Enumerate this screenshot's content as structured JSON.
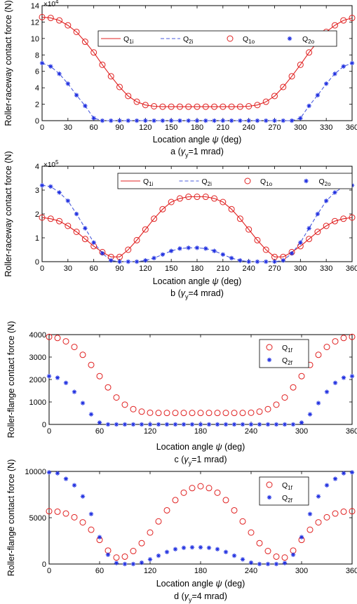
{
  "chart_data": [
    {
      "type": "line",
      "panel": "a",
      "caption_parts": [
        "a (",
        "γ",
        "y",
        "=1 mrad)"
      ],
      "xlabel_parts": [
        "Location angle ",
        "ψ",
        " (deg)"
      ],
      "ylabel": "Roller-raceway contact force (N)",
      "exponent_parts": [
        "×10",
        "4"
      ],
      "xlim": [
        0,
        360
      ],
      "xticks": [
        0,
        30,
        60,
        90,
        120,
        150,
        180,
        210,
        240,
        270,
        300,
        330,
        360
      ],
      "ylim": [
        0,
        14
      ],
      "yticks": [
        0,
        2,
        4,
        6,
        8,
        10,
        12,
        14
      ],
      "legend": [
        {
          "base": "Q",
          "sub": "1i",
          "style": "line-red"
        },
        {
          "base": "Q",
          "sub": "2i",
          "style": "dash-blue"
        },
        {
          "base": "Q",
          "sub": "1o",
          "style": "circle-red"
        },
        {
          "base": "Q",
          "sub": "2o",
          "style": "star-blue"
        }
      ],
      "legend_position": "top",
      "x": [
        0,
        10,
        20,
        30,
        40,
        50,
        60,
        70,
        80,
        90,
        100,
        110,
        120,
        130,
        140,
        150,
        160,
        170,
        180,
        190,
        200,
        210,
        220,
        230,
        240,
        250,
        260,
        270,
        280,
        290,
        300,
        310,
        320,
        330,
        340,
        350,
        360
      ],
      "series": [
        {
          "name": "Q1i",
          "style": "line-red",
          "values": [
            12.6,
            12.5,
            12.2,
            11.6,
            10.8,
            9.6,
            8.3,
            6.8,
            5.4,
            4.1,
            3.0,
            2.3,
            1.9,
            1.75,
            1.7,
            1.7,
            1.7,
            1.7,
            1.7,
            1.7,
            1.7,
            1.7,
            1.7,
            1.7,
            1.75,
            1.9,
            2.3,
            3.0,
            4.1,
            5.4,
            6.8,
            8.3,
            9.6,
            10.8,
            11.6,
            12.2,
            12.5
          ]
        },
        {
          "name": "Q2i",
          "style": "dash-blue",
          "values": [
            7.0,
            6.6,
            5.7,
            4.5,
            3.1,
            1.8,
            0.3,
            0,
            0,
            0,
            0,
            0,
            0,
            0,
            0,
            0,
            0,
            0,
            0,
            0,
            0,
            0,
            0,
            0,
            0,
            0,
            0,
            0,
            0,
            0,
            0.3,
            1.8,
            3.1,
            4.5,
            5.7,
            6.6,
            7.0
          ]
        },
        {
          "name": "Q1o",
          "style": "circle-red",
          "values": [
            12.6,
            12.5,
            12.2,
            11.6,
            10.8,
            9.6,
            8.3,
            6.8,
            5.4,
            4.1,
            3.0,
            2.3,
            1.9,
            1.75,
            1.7,
            1.7,
            1.7,
            1.7,
            1.7,
            1.7,
            1.7,
            1.7,
            1.7,
            1.7,
            1.75,
            1.9,
            2.3,
            3.0,
            4.1,
            5.4,
            6.8,
            8.3,
            9.6,
            10.8,
            11.6,
            12.2,
            12.5
          ]
        },
        {
          "name": "Q2o",
          "style": "star-blue",
          "values": [
            7.0,
            6.6,
            5.7,
            4.5,
            3.1,
            1.8,
            0.3,
            0,
            0,
            0,
            0,
            0,
            0,
            0,
            0,
            0,
            0,
            0,
            0,
            0,
            0,
            0,
            0,
            0,
            0,
            0,
            0,
            0,
            0,
            0,
            0.3,
            1.8,
            3.1,
            4.5,
            5.7,
            6.6,
            7.0
          ]
        }
      ]
    },
    {
      "type": "line",
      "panel": "b",
      "caption_parts": [
        "b (",
        "γ",
        "y",
        "=4 mrad)"
      ],
      "xlabel_parts": [
        "Location angle ",
        "ψ",
        " (deg)"
      ],
      "ylabel": "Roller-raceway contact force (N)",
      "exponent_parts": [
        "×10",
        "5"
      ],
      "xlim": [
        0,
        360
      ],
      "xticks": [
        0,
        30,
        60,
        90,
        120,
        150,
        180,
        210,
        240,
        270,
        300,
        330,
        360
      ],
      "ylim": [
        0,
        4
      ],
      "yticks": [
        0,
        1,
        2,
        3,
        4
      ],
      "legend": [
        {
          "base": "Q",
          "sub": "1i",
          "style": "line-red"
        },
        {
          "base": "Q",
          "sub": "2i",
          "style": "dash-blue"
        },
        {
          "base": "Q",
          "sub": "1o",
          "style": "circle-red"
        },
        {
          "base": "Q",
          "sub": "2o",
          "style": "star-blue"
        }
      ],
      "legend_position": "top",
      "x": [
        0,
        10,
        20,
        30,
        40,
        50,
        60,
        70,
        80,
        90,
        100,
        110,
        120,
        130,
        140,
        150,
        160,
        170,
        180,
        190,
        200,
        210,
        220,
        230,
        240,
        250,
        260,
        270,
        280,
        290,
        300,
        310,
        320,
        330,
        340,
        350,
        360
      ],
      "series": [
        {
          "name": "Q1i",
          "style": "line-red",
          "values": [
            1.85,
            1.8,
            1.7,
            1.5,
            1.25,
            0.95,
            0.65,
            0.4,
            0.2,
            0.2,
            0.5,
            0.9,
            1.35,
            1.8,
            2.2,
            2.5,
            2.65,
            2.72,
            2.72,
            2.72,
            2.65,
            2.5,
            2.2,
            1.8,
            1.35,
            0.9,
            0.5,
            0.2,
            0.2,
            0.4,
            0.65,
            0.95,
            1.25,
            1.5,
            1.7,
            1.8,
            1.85
          ]
        },
        {
          "name": "Q2i",
          "style": "dash-blue",
          "values": [
            3.2,
            3.15,
            2.9,
            2.55,
            2.0,
            1.4,
            0.8,
            0.35,
            0.05,
            0,
            0,
            0,
            0.05,
            0.15,
            0.3,
            0.45,
            0.55,
            0.58,
            0.58,
            0.55,
            0.45,
            0.3,
            0.15,
            0.05,
            0,
            0,
            0,
            0,
            0.05,
            0.35,
            0.8,
            1.4,
            2.0,
            2.55,
            2.9,
            3.15,
            3.2
          ]
        },
        {
          "name": "Q1o",
          "style": "circle-red",
          "values": [
            1.85,
            1.8,
            1.7,
            1.5,
            1.25,
            0.95,
            0.65,
            0.4,
            0.2,
            0.2,
            0.5,
            0.9,
            1.35,
            1.8,
            2.2,
            2.5,
            2.65,
            2.72,
            2.72,
            2.72,
            2.65,
            2.5,
            2.2,
            1.8,
            1.35,
            0.9,
            0.5,
            0.2,
            0.2,
            0.4,
            0.65,
            0.95,
            1.25,
            1.5,
            1.7,
            1.8,
            1.85
          ]
        },
        {
          "name": "Q2o",
          "style": "star-blue",
          "values": [
            3.2,
            3.15,
            2.9,
            2.55,
            2.0,
            1.4,
            0.8,
            0.35,
            0.05,
            0,
            0,
            0,
            0.05,
            0.15,
            0.3,
            0.45,
            0.55,
            0.58,
            0.58,
            0.55,
            0.45,
            0.3,
            0.15,
            0.05,
            0,
            0,
            0,
            0,
            0.05,
            0.35,
            0.8,
            1.4,
            2.0,
            2.55,
            2.9,
            3.15,
            3.2
          ]
        }
      ]
    },
    {
      "type": "scatter",
      "panel": "c",
      "caption_parts": [
        "c (",
        "γ",
        "y",
        "=1 mrad)"
      ],
      "xlabel_parts": [
        "Location angle ",
        "ψ",
        " (deg)"
      ],
      "ylabel": "Roller-flange contact force (N)",
      "exponent_parts": null,
      "xlim": [
        0,
        360
      ],
      "xticks": [
        0,
        60,
        120,
        180,
        240,
        300,
        360
      ],
      "ylim": [
        0,
        4000
      ],
      "yticks": [
        0,
        1000,
        2000,
        3000,
        4000
      ],
      "legend": [
        {
          "base": "Q",
          "sub": "1f",
          "style": "circle-red"
        },
        {
          "base": "Q",
          "sub": "2f",
          "style": "star-blue"
        }
      ],
      "legend_position": "top-right",
      "x": [
        0,
        10,
        20,
        30,
        40,
        50,
        60,
        70,
        80,
        90,
        100,
        110,
        120,
        130,
        140,
        150,
        160,
        170,
        180,
        190,
        200,
        210,
        220,
        230,
        240,
        250,
        260,
        270,
        280,
        290,
        300,
        310,
        320,
        330,
        340,
        350,
        360
      ],
      "series": [
        {
          "name": "Q1f",
          "style": "circle-red",
          "values": [
            3900,
            3850,
            3700,
            3450,
            3100,
            2650,
            2150,
            1650,
            1200,
            880,
            680,
            570,
            520,
            510,
            510,
            510,
            510,
            510,
            510,
            510,
            510,
            510,
            510,
            510,
            520,
            570,
            680,
            880,
            1200,
            1650,
            2150,
            2650,
            3100,
            3450,
            3700,
            3850,
            3900
          ]
        },
        {
          "name": "Q2f",
          "style": "star-blue",
          "values": [
            2150,
            2080,
            1850,
            1450,
            950,
            450,
            80,
            0,
            0,
            0,
            0,
            0,
            0,
            0,
            0,
            0,
            0,
            0,
            0,
            0,
            0,
            0,
            0,
            0,
            0,
            0,
            0,
            0,
            0,
            0,
            80,
            450,
            950,
            1450,
            1850,
            2080,
            2150
          ]
        }
      ]
    },
    {
      "type": "scatter",
      "panel": "d",
      "caption_parts": [
        "d (",
        "γ",
        "y",
        "=4 mrad)"
      ],
      "xlabel_parts": [
        "Location angle ",
        "ψ",
        " (deg)"
      ],
      "ylabel": "Roller-flange contact force (N)",
      "exponent_parts": null,
      "xlim": [
        0,
        360
      ],
      "xticks": [
        0,
        60,
        120,
        180,
        240,
        300,
        360
      ],
      "ylim": [
        0,
        10000
      ],
      "yticks": [
        0,
        5000,
        10000
      ],
      "legend": [
        {
          "base": "Q",
          "sub": "1f",
          "style": "circle-red"
        },
        {
          "base": "Q",
          "sub": "2f",
          "style": "star-blue"
        }
      ],
      "legend_position": "top-right",
      "x": [
        0,
        10,
        20,
        30,
        40,
        50,
        60,
        70,
        80,
        90,
        100,
        110,
        120,
        130,
        140,
        150,
        160,
        170,
        180,
        190,
        200,
        210,
        220,
        230,
        240,
        250,
        260,
        270,
        280,
        290,
        300,
        310,
        320,
        330,
        340,
        350,
        360
      ],
      "series": [
        {
          "name": "Q1f",
          "style": "circle-red",
          "values": [
            5700,
            5650,
            5450,
            5050,
            4500,
            3700,
            2600,
            1450,
            700,
            800,
            1400,
            2250,
            3400,
            4600,
            5800,
            6900,
            7700,
            8200,
            8400,
            8200,
            7700,
            6900,
            5800,
            4600,
            3400,
            2250,
            1400,
            800,
            700,
            1450,
            2600,
            3700,
            4500,
            5050,
            5450,
            5650,
            5700
          ]
        },
        {
          "name": "Q2f",
          "style": "star-blue",
          "values": [
            9900,
            9800,
            9200,
            8500,
            7300,
            5400,
            2900,
            1000,
            100,
            0,
            0,
            150,
            500,
            900,
            1300,
            1600,
            1750,
            1800,
            1800,
            1750,
            1600,
            1300,
            900,
            500,
            150,
            0,
            0,
            0,
            100,
            1000,
            2900,
            5400,
            7300,
            8500,
            9200,
            9800,
            9900
          ]
        }
      ]
    }
  ]
}
